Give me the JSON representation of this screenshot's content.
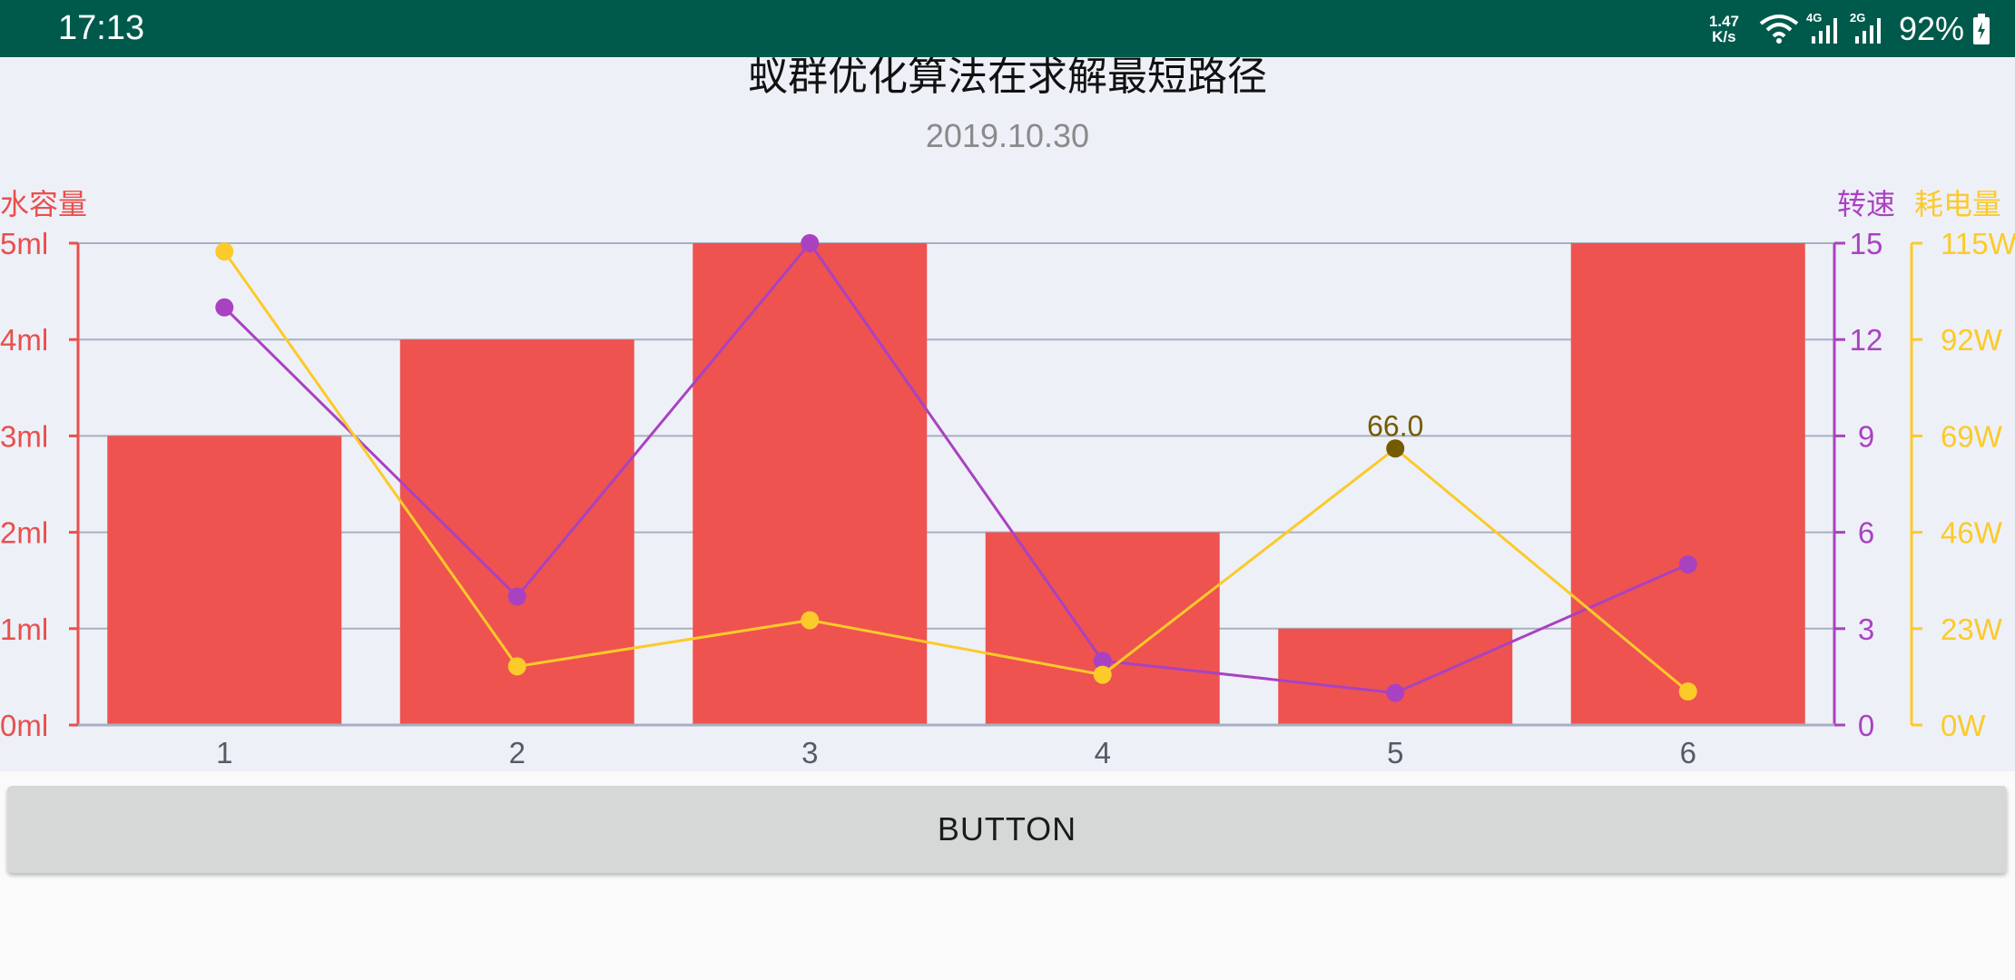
{
  "status_bar": {
    "time": "17:13",
    "net_speed_value": "1.47",
    "net_speed_unit": "K/s",
    "signal_1_label": "4G",
    "signal_2_label": "2G",
    "battery_percent": "92%",
    "background_color": "#005a4c",
    "icons": [
      "wifi-icon",
      "signal-icon",
      "signal-icon",
      "battery-charging-icon"
    ]
  },
  "chart": {
    "title": "蚁群优化算法在求解最短路径",
    "subtitle": "2019.10.30",
    "left_axis_title": "水容量",
    "right_axis_1_title": "转速",
    "right_axis_2_title": "耗电量",
    "highlight_label": "66.0"
  },
  "chart_data": {
    "type": "bar",
    "title": "蚁群优化算法在求解最短路径",
    "subtitle": "2019.10.30",
    "categories": [
      "1",
      "2",
      "3",
      "4",
      "5",
      "6"
    ],
    "grid": true,
    "axes": {
      "left": {
        "label": "水容量",
        "range": [
          0,
          5
        ],
        "ticks": [
          0,
          1,
          2,
          3,
          4,
          5
        ],
        "tick_labels": [
          "0ml",
          "1ml",
          "2ml",
          "3ml",
          "4ml",
          "5ml"
        ],
        "color": "#e8504d"
      },
      "right_1": {
        "label": "转速",
        "range": [
          0,
          15
        ],
        "ticks": [
          0,
          3,
          6,
          9,
          12,
          15
        ],
        "tick_labels": [
          "0",
          "3",
          "6",
          "9",
          "12",
          "15"
        ],
        "color": "#a942c1"
      },
      "right_2": {
        "label": "耗电量",
        "range": [
          0,
          115
        ],
        "ticks": [
          0,
          23,
          46,
          69,
          92,
          115
        ],
        "tick_labels": [
          "0W",
          "23W",
          "46W",
          "69W",
          "92W",
          "115W"
        ],
        "color": "#fcca29"
      }
    },
    "series": [
      {
        "type": "bar",
        "axis": "left",
        "color": "#ee5350",
        "values": [
          3,
          4,
          5,
          2,
          1,
          5
        ]
      },
      {
        "type": "line",
        "axis": "right_1",
        "color": "#a942c1",
        "values": [
          13,
          4,
          15,
          2,
          1,
          5
        ]
      },
      {
        "type": "line",
        "axis": "right_2",
        "color": "#fcca29",
        "values": [
          113,
          14,
          25,
          12,
          66,
          8
        ]
      }
    ],
    "highlight": {
      "series_index": 2,
      "point_index": 4,
      "label": "66.0",
      "color": "#745b00"
    }
  },
  "button": {
    "label": "BUTTON"
  }
}
